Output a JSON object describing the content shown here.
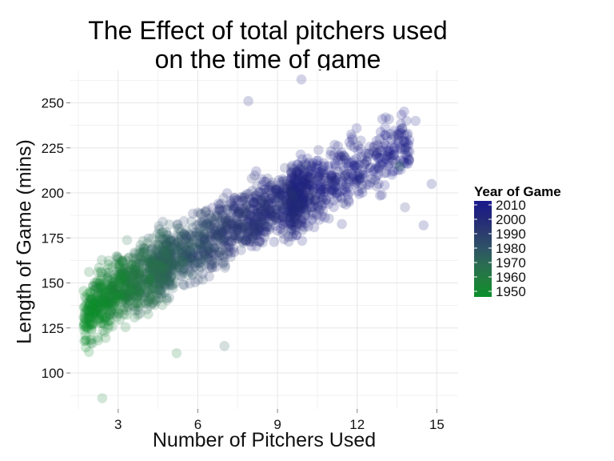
{
  "chart_data": {
    "type": "scatter",
    "title_line1": "The Effect of total pitchers used",
    "title_line2": "on the time of game",
    "xlabel": "Number of Pitchers Used",
    "ylabel": "Length of Game (mins)",
    "xlim": [
      1.2,
      15.8
    ],
    "ylim": [
      80,
      268
    ],
    "x_ticks": [
      3,
      6,
      9,
      12,
      15
    ],
    "x_tick_labels": [
      "3",
      "6",
      "9",
      "12",
      "15"
    ],
    "y_ticks": [
      100,
      125,
      150,
      175,
      200,
      225,
      250
    ],
    "y_tick_labels": [
      "100",
      "125",
      "150",
      "175",
      "200",
      "225",
      "250"
    ],
    "grid": true,
    "legend": {
      "title": "Year of Game",
      "position": "right",
      "labels": [
        "2010",
        "2000",
        "1990",
        "1980",
        "1970",
        "1960",
        "1950"
      ],
      "colors": [
        "#1a1a8c",
        "#22267a",
        "#2c3c6f",
        "#2e5466",
        "#2b6d52",
        "#1f7f3c",
        "#0c8f2a"
      ],
      "range": [
        1950,
        2012
      ]
    },
    "trend": {
      "description": "game length rises with number of pitchers; early years (green) cluster at 2-6 pitchers and ~100-175 mins, recent years (blue) at 6-12 pitchers and ~150-240 mins",
      "points_approx": [
        {
          "x": 2,
          "y": 135,
          "year": 1955
        },
        {
          "x": 3,
          "y": 145,
          "year": 1962
        },
        {
          "x": 4,
          "y": 155,
          "year": 1972
        },
        {
          "x": 5,
          "y": 163,
          "year": 1980
        },
        {
          "x": 6,
          "y": 170,
          "year": 1988
        },
        {
          "x": 7,
          "y": 178,
          "year": 1995
        },
        {
          "x": 8,
          "y": 186,
          "year": 2000
        },
        {
          "x": 9,
          "y": 193,
          "year": 2004
        },
        {
          "x": 10,
          "y": 200,
          "year": 2007
        },
        {
          "x": 11,
          "y": 206,
          "year": 2009
        },
        {
          "x": 12,
          "y": 212,
          "year": 2010
        },
        {
          "x": 13,
          "y": 220,
          "year": 2011
        }
      ],
      "outliers": [
        {
          "x": 9.9,
          "y": 263,
          "year": 2008
        },
        {
          "x": 7.9,
          "y": 251,
          "year": 2006
        },
        {
          "x": 2.4,
          "y": 86,
          "year": 1960
        },
        {
          "x": 14.8,
          "y": 205,
          "year": 2010
        },
        {
          "x": 14.5,
          "y": 182,
          "year": 2009
        },
        {
          "x": 13.8,
          "y": 192,
          "year": 1995
        },
        {
          "x": 13.6,
          "y": 215,
          "year": 1960
        },
        {
          "x": 14.2,
          "y": 240,
          "year": 2009
        },
        {
          "x": 13.2,
          "y": 241,
          "year": 2010
        },
        {
          "x": 7.0,
          "y": 115,
          "year": 1975
        },
        {
          "x": 5.2,
          "y": 111,
          "year": 1960
        }
      ]
    }
  }
}
